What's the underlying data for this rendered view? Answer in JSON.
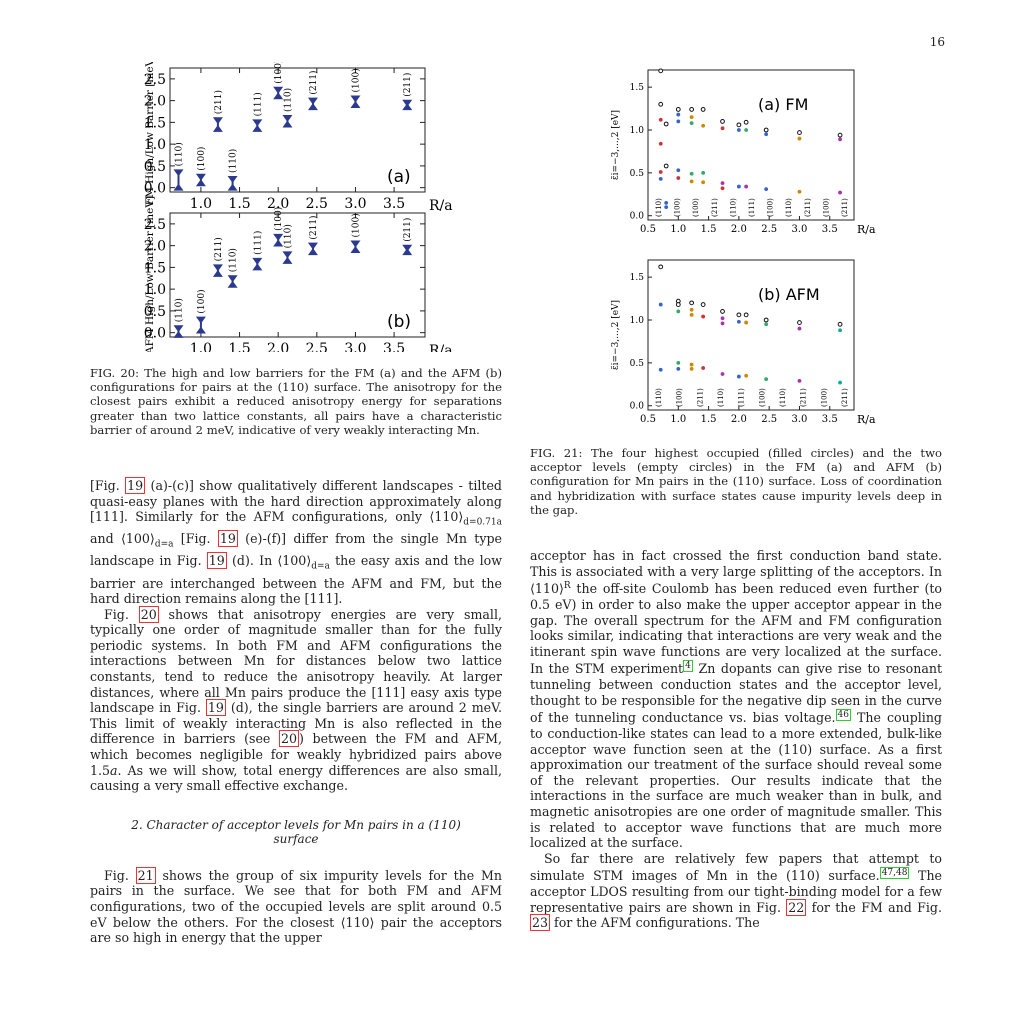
{
  "page_number": "16",
  "fig20": {
    "caption": "FIG. 20: The high and low barriers for the FM (a) and the AFM (b) configurations for pairs at the (110) surface. The anisotropy for the closest pairs exhibit a reduced anisotropy energy for separations greater than two lattice constants, all pairs have a characteristic barrier of around 2 meV, indicative of very weakly interacting Mn."
  },
  "fig21": {
    "caption": "FIG. 21: The four highest occupied (filled circles) and the two acceptor levels (empty circles) in the FM (a) and AFM (b) configuration for Mn pairs in the (110) surface. Loss of coordination and hybridization with surface states cause impurity levels deep in the gap."
  },
  "chart_data": [
    {
      "type": "scatter",
      "panel": "(a)",
      "ylabel": "FM High/Low Barrier [meV]",
      "xlabel": "R/a",
      "xlim": [
        0.6,
        3.9
      ],
      "ylim": [
        -0.1,
        2.75
      ],
      "xticks": [
        "1.0",
        "1.5",
        "2.0",
        "2.5",
        "3.0",
        "3.5"
      ],
      "yticks": [
        "0.0",
        "0.5",
        "1.0",
        "1.5",
        "2.0",
        "2.5"
      ],
      "points": [
        {
          "x": 0.71,
          "high": 0.35,
          "low": 0.0,
          "label": "(110)"
        },
        {
          "x": 1.0,
          "high": 0.25,
          "low": 0.1,
          "label": "(100)"
        },
        {
          "x": 1.22,
          "high": 1.55,
          "low": 1.35,
          "label": "(211)"
        },
        {
          "x": 1.41,
          "high": 0.2,
          "low": 0.0,
          "label": "(110)"
        },
        {
          "x": 1.73,
          "high": 1.5,
          "low": 1.35,
          "label": "(111)"
        },
        {
          "x": 2.0,
          "high": 2.25,
          "low": 2.1,
          "label": "(100)"
        },
        {
          "x": 2.12,
          "high": 1.6,
          "low": 1.45,
          "label": "(110)"
        },
        {
          "x": 2.45,
          "high": 2.0,
          "low": 1.85,
          "label": "(211)"
        },
        {
          "x": 3.0,
          "high": 2.05,
          "low": 1.9,
          "label": "(100)"
        },
        {
          "x": 3.67,
          "high": 1.95,
          "low": 1.85,
          "label": "(211)"
        }
      ]
    },
    {
      "type": "scatter",
      "panel": "(b)",
      "ylabel": "AFM High/Low Barrier [meV]",
      "xlabel": "R/a",
      "xlim": [
        0.6,
        3.9
      ],
      "ylim": [
        -0.1,
        2.75
      ],
      "xticks": [
        "1.0",
        "1.5",
        "2.0",
        "2.5",
        "3.0",
        "3.5"
      ],
      "yticks": [
        "0.0",
        "0.5",
        "1.0",
        "1.5",
        "2.0",
        "2.5"
      ],
      "points": [
        {
          "x": 0.71,
          "high": 0.1,
          "low": -0.05,
          "label": "(110)"
        },
        {
          "x": 1.0,
          "high": 0.3,
          "low": 0.05,
          "label": "(100)"
        },
        {
          "x": 1.22,
          "high": 1.5,
          "low": 1.35,
          "label": "(211)"
        },
        {
          "x": 1.41,
          "high": 1.25,
          "low": 1.1,
          "label": "(110)"
        },
        {
          "x": 1.73,
          "high": 1.65,
          "low": 1.5,
          "label": "(111)"
        },
        {
          "x": 2.0,
          "high": 2.2,
          "low": 2.05,
          "label": "(100)"
        },
        {
          "x": 2.12,
          "high": 1.8,
          "low": 1.65,
          "label": "(110)"
        },
        {
          "x": 2.45,
          "high": 2.0,
          "low": 1.85,
          "label": "(211)"
        },
        {
          "x": 3.0,
          "high": 2.05,
          "low": 1.9,
          "label": "(100)"
        },
        {
          "x": 3.67,
          "high": 1.95,
          "low": 1.85,
          "label": "(211)"
        }
      ]
    },
    {
      "type": "scatter",
      "panel": "(a) FM",
      "ylabel": "ε̃i=−3,...,2 [eV]",
      "xlabel": "R/a",
      "xlim": [
        0.5,
        3.9
      ],
      "ylim": [
        -0.05,
        1.7
      ],
      "xticks": [
        "0.5",
        "1.0",
        "1.5",
        "2.0",
        "2.5",
        "3.0",
        "3.5"
      ],
      "yticks": [
        "0.0",
        "0.5",
        "1.0",
        "1.5"
      ],
      "bottom_labels": [
        "(110)",
        "(100)",
        "(100)",
        "(211)",
        "(110)",
        "(111)",
        "(100)",
        "(110)",
        "(211)",
        "(100)",
        "(211)"
      ],
      "points": [
        {
          "x": 0.71,
          "y": 1.69,
          "filled": false
        },
        {
          "x": 0.71,
          "y": 1.3,
          "filled": false
        },
        {
          "x": 0.71,
          "y": 1.12,
          "filled": true,
          "color": "#c33"
        },
        {
          "x": 0.71,
          "y": 0.84,
          "filled": true,
          "color": "#c33"
        },
        {
          "x": 0.71,
          "y": 0.43,
          "filled": true,
          "color": "#36c"
        },
        {
          "x": 0.71,
          "y": 0.51,
          "filled": true,
          "color": "#c33"
        },
        {
          "x": 0.8,
          "y": 0.15,
          "filled": true,
          "color": "#36c"
        },
        {
          "x": 0.8,
          "y": 0.1,
          "filled": true,
          "color": "#36c"
        },
        {
          "x": 0.8,
          "y": 0.58,
          "filled": false
        },
        {
          "x": 0.8,
          "y": 1.07,
          "filled": false
        },
        {
          "x": 1.0,
          "y": 1.24,
          "filled": false
        },
        {
          "x": 1.0,
          "y": 1.18,
          "filled": true,
          "color": "#36c"
        },
        {
          "x": 1.0,
          "y": 1.1,
          "filled": true,
          "color": "#36c"
        },
        {
          "x": 1.0,
          "y": 0.53,
          "filled": true,
          "color": "#36c"
        },
        {
          "x": 1.0,
          "y": 0.44,
          "filled": true,
          "color": "#c33"
        },
        {
          "x": 1.22,
          "y": 1.24,
          "filled": false
        },
        {
          "x": 1.22,
          "y": 1.15,
          "filled": true,
          "color": "#c80"
        },
        {
          "x": 1.22,
          "y": 1.08,
          "filled": true,
          "color": "#3a6"
        },
        {
          "x": 1.22,
          "y": 0.49,
          "filled": true,
          "color": "#3a6"
        },
        {
          "x": 1.22,
          "y": 0.4,
          "filled": true,
          "color": "#c80"
        },
        {
          "x": 1.41,
          "y": 1.24,
          "filled": false
        },
        {
          "x": 1.41,
          "y": 1.05,
          "filled": true,
          "color": "#c80"
        },
        {
          "x": 1.41,
          "y": 0.5,
          "filled": true,
          "color": "#3a6"
        },
        {
          "x": 1.41,
          "y": 0.39,
          "filled": true,
          "color": "#c80"
        },
        {
          "x": 1.73,
          "y": 1.1,
          "filled": false
        },
        {
          "x": 1.73,
          "y": 1.02,
          "filled": true,
          "color": "#c33"
        },
        {
          "x": 1.73,
          "y": 0.38,
          "filled": true,
          "color": "#a3a"
        },
        {
          "x": 1.73,
          "y": 0.32,
          "filled": true,
          "color": "#c33"
        },
        {
          "x": 2.0,
          "y": 1.06,
          "filled": false
        },
        {
          "x": 2.0,
          "y": 1.0,
          "filled": true,
          "color": "#36c"
        },
        {
          "x": 2.0,
          "y": 0.34,
          "filled": true,
          "color": "#36c"
        },
        {
          "x": 2.12,
          "y": 1.09,
          "filled": false
        },
        {
          "x": 2.12,
          "y": 1.0,
          "filled": true,
          "color": "#3a6"
        },
        {
          "x": 2.12,
          "y": 0.34,
          "filled": true,
          "color": "#a3a"
        },
        {
          "x": 2.45,
          "y": 1.0,
          "filled": false
        },
        {
          "x": 2.45,
          "y": 0.95,
          "filled": true,
          "color": "#36c"
        },
        {
          "x": 2.45,
          "y": 0.31,
          "filled": true,
          "color": "#36c"
        },
        {
          "x": 3.0,
          "y": 0.97,
          "filled": false
        },
        {
          "x": 3.0,
          "y": 0.9,
          "filled": true,
          "color": "#c80"
        },
        {
          "x": 3.0,
          "y": 0.28,
          "filled": true,
          "color": "#c80"
        },
        {
          "x": 3.67,
          "y": 0.94,
          "filled": false
        },
        {
          "x": 3.67,
          "y": 0.89,
          "filled": true,
          "color": "#a3a"
        },
        {
          "x": 3.67,
          "y": 0.27,
          "filled": true,
          "color": "#a3a"
        }
      ]
    },
    {
      "type": "scatter",
      "panel": "(b) AFM",
      "ylabel": "ε̃i=−3,...,2 [eV]",
      "xlabel": "R/a",
      "xlim": [
        0.5,
        3.9
      ],
      "ylim": [
        -0.05,
        1.7
      ],
      "xticks": [
        "0.5",
        "1.0",
        "1.5",
        "2.0",
        "2.5",
        "3.0",
        "3.5"
      ],
      "yticks": [
        "0.0",
        "0.5",
        "1.0",
        "1.5"
      ],
      "bottom_labels": [
        "(110)",
        "(100)",
        "(211)",
        "(110)",
        "(111)",
        "(100)",
        "(110)",
        "(211)",
        "(100)",
        "(211)"
      ],
      "points": [
        {
          "x": 0.71,
          "y": 1.62,
          "filled": false
        },
        {
          "x": 0.71,
          "y": 1.18,
          "filled": true,
          "color": "#36c"
        },
        {
          "x": 0.71,
          "y": 0.42,
          "filled": true,
          "color": "#36c"
        },
        {
          "x": 1.0,
          "y": 1.22,
          "filled": false
        },
        {
          "x": 1.0,
          "y": 1.18,
          "filled": false
        },
        {
          "x": 1.0,
          "y": 1.1,
          "filled": true,
          "color": "#3a6"
        },
        {
          "x": 1.0,
          "y": 0.5,
          "filled": true,
          "color": "#3a6"
        },
        {
          "x": 1.0,
          "y": 0.43,
          "filled": true,
          "color": "#36c"
        },
        {
          "x": 1.22,
          "y": 1.2,
          "filled": false
        },
        {
          "x": 1.22,
          "y": 1.12,
          "filled": true,
          "color": "#c80"
        },
        {
          "x": 1.22,
          "y": 1.06,
          "filled": true,
          "color": "#c80"
        },
        {
          "x": 1.22,
          "y": 0.48,
          "filled": true,
          "color": "#c80"
        },
        {
          "x": 1.22,
          "y": 0.43,
          "filled": true,
          "color": "#c80"
        },
        {
          "x": 1.41,
          "y": 1.18,
          "filled": false
        },
        {
          "x": 1.41,
          "y": 1.04,
          "filled": true,
          "color": "#c33"
        },
        {
          "x": 1.41,
          "y": 0.44,
          "filled": true,
          "color": "#c33"
        },
        {
          "x": 1.73,
          "y": 1.1,
          "filled": false
        },
        {
          "x": 1.73,
          "y": 1.02,
          "filled": true,
          "color": "#a3a"
        },
        {
          "x": 1.73,
          "y": 0.96,
          "filled": true,
          "color": "#a3a"
        },
        {
          "x": 1.73,
          "y": 0.37,
          "filled": true,
          "color": "#a3a"
        },
        {
          "x": 2.0,
          "y": 1.06,
          "filled": false
        },
        {
          "x": 2.0,
          "y": 0.98,
          "filled": true,
          "color": "#36c"
        },
        {
          "x": 2.0,
          "y": 0.34,
          "filled": true,
          "color": "#36c"
        },
        {
          "x": 2.12,
          "y": 1.06,
          "filled": false
        },
        {
          "x": 2.12,
          "y": 0.97,
          "filled": true,
          "color": "#c80"
        },
        {
          "x": 2.12,
          "y": 0.35,
          "filled": true,
          "color": "#c80"
        },
        {
          "x": 2.45,
          "y": 1.0,
          "filled": false
        },
        {
          "x": 2.45,
          "y": 0.95,
          "filled": true,
          "color": "#3a6"
        },
        {
          "x": 2.45,
          "y": 0.31,
          "filled": true,
          "color": "#3a6"
        },
        {
          "x": 3.0,
          "y": 0.97,
          "filled": false
        },
        {
          "x": 3.0,
          "y": 0.9,
          "filled": true,
          "color": "#a3a"
        },
        {
          "x": 3.0,
          "y": 0.29,
          "filled": true,
          "color": "#a3a"
        },
        {
          "x": 3.67,
          "y": 0.95,
          "filled": false
        },
        {
          "x": 3.67,
          "y": 0.88,
          "filled": true,
          "color": "#1a9"
        },
        {
          "x": 3.67,
          "y": 0.27,
          "filled": true,
          "color": "#1a9"
        }
      ]
    }
  ],
  "left_col": {
    "p1": [
      "[Fig. ",
      "19",
      " (a)-(c)] show qualitatively different landscapes - tilted quasi-easy planes with the hard direction approximately along [111]. Similarly for the AFM configurations, only ⟨110⟩",
      "d=0.71a",
      " and ⟨100⟩",
      "d=a",
      " [Fig. ",
      "19",
      " (e)-(f)] differ from the single Mn type landscape in Fig. ",
      "19",
      " (d). In ⟨100⟩",
      "d=a",
      " the easy axis and the low barrier are interchanged between the AFM and FM, but the hard direction remains along the [111]."
    ],
    "p2": [
      "Fig. ",
      "20",
      " shows that anisotropy energies are very small, typically one order of magnitude smaller than for the fully periodic systems. In both FM and AFM configurations the interactions between Mn for distances below two lattice constants, tend to reduce the anisotropy heavily. At larger distances, where all Mn pairs produce the [111] easy axis type landscape in Fig. ",
      "19",
      " (d), the single barriers are around 2 meV. This limit of weakly interacting Mn is also reflected in the difference in barriers (see ",
      "20",
      ") between the FM and AFM, which becomes negligible for weakly hybridized pairs above 1.5",
      "a",
      ". As we will show, total energy differences are also small, causing a very small effective exchange."
    ],
    "section_heading": "2.   Character of acceptor levels for Mn pairs in a (110) surface",
    "p3": [
      "Fig. ",
      "21",
      " shows the group of six impurity levels for the Mn pairs in the surface. We see that for both FM and AFM configurations, two of the occupied levels are split around 0.5 eV below the others. For the closest ⟨110⟩ pair the acceptors are so high in energy that the upper"
    ]
  },
  "right_col": {
    "p1": [
      "acceptor has in fact crossed the first conduction band state. This is associated with a very large splitting of the acceptors. In ⟨110⟩",
      "R",
      " the off-site Coulomb has been reduced even further (to 0.5 eV) in order to also make the upper acceptor appear in the gap. The overall spectrum for the AFM and FM configuration looks similar, indicating that interactions are very weak and the itinerant spin wave functions are very localized at the surface. In the STM experiment",
      "4",
      " Zn dopants can give rise to resonant tunneling between conduction states and the acceptor level, thought to be responsible for the negative dip seen in the curve of the tunneling conductance vs. bias voltage.",
      "46",
      " The coupling to conduction-like states can lead to a more extended, bulk-like acceptor wave function seen at the (110) surface. As a first approximation our treatment of the surface should reveal some of the relevant properties. Our results indicate that the interactions in the surface are much weaker than in bulk, and magnetic anisotropies are one order of magnitude smaller. This is related to acceptor wave functions that are much more localized at the surface."
    ],
    "p2": [
      "So far there are relatively few papers that attempt to simulate STM images of Mn in the (110) surface.",
      "47,48",
      " The acceptor LDOS resulting from our tight-binding model for a few representative pairs are shown in Fig. ",
      "22",
      " for the FM and Fig. ",
      "23",
      " for the AFM configurations. The"
    ]
  }
}
